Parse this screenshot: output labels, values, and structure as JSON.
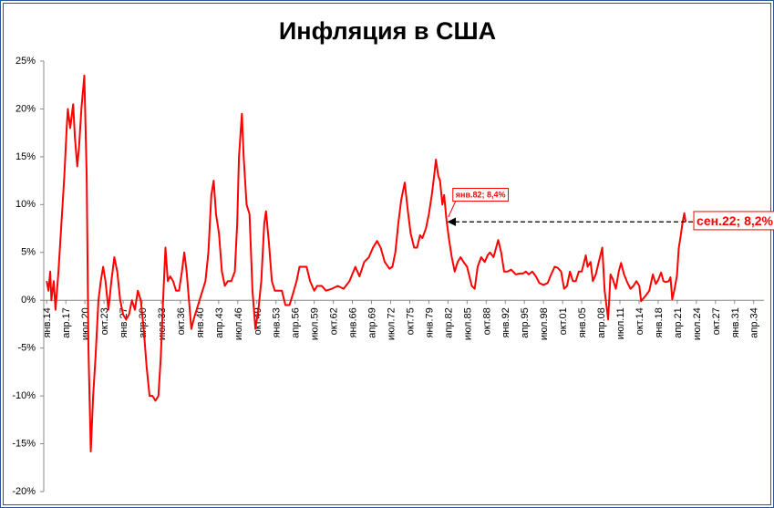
{
  "chart_data": {
    "type": "line",
    "title": "Инфляция в США",
    "xlim": [
      1913.5,
      2036
    ],
    "ylim": [
      -20,
      25
    ],
    "yticks": [
      {
        "value": 25,
        "label": "25%"
      },
      {
        "value": 20,
        "label": "20%"
      },
      {
        "value": 15,
        "label": "15%"
      },
      {
        "value": 10,
        "label": "10%"
      },
      {
        "value": 5,
        "label": "5%"
      },
      {
        "value": 0,
        "label": "0%"
      },
      {
        "value": -5,
        "label": "-5%"
      },
      {
        "value": -10,
        "label": "-10%"
      },
      {
        "value": -15,
        "label": "-15%"
      },
      {
        "value": -20,
        "label": "-20%"
      }
    ],
    "xticks": [
      {
        "value": 1914,
        "label": "янв.14"
      },
      {
        "value": 1917.25,
        "label": "апр.17"
      },
      {
        "value": 1920.5,
        "label": "июл.20"
      },
      {
        "value": 1923.75,
        "label": "окт.23"
      },
      {
        "value": 1927,
        "label": "янв.27"
      },
      {
        "value": 1930.25,
        "label": "апр.30"
      },
      {
        "value": 1933.5,
        "label": "июл.33"
      },
      {
        "value": 1936.75,
        "label": "окт.36"
      },
      {
        "value": 1940,
        "label": "янв.40"
      },
      {
        "value": 1943.25,
        "label": "апр.43"
      },
      {
        "value": 1946.5,
        "label": "июл.46"
      },
      {
        "value": 1949.75,
        "label": "окт.49"
      },
      {
        "value": 1953,
        "label": "янв.53"
      },
      {
        "value": 1956.25,
        "label": "апр.56"
      },
      {
        "value": 1959.5,
        "label": "июл.59"
      },
      {
        "value": 1962.75,
        "label": "окт.62"
      },
      {
        "value": 1966,
        "label": "янв.66"
      },
      {
        "value": 1969.25,
        "label": "апр.69"
      },
      {
        "value": 1972.5,
        "label": "июл.72"
      },
      {
        "value": 1975.75,
        "label": "окт.75"
      },
      {
        "value": 1979,
        "label": "янв.79"
      },
      {
        "value": 1982.25,
        "label": "апр.82"
      },
      {
        "value": 1985.5,
        "label": "июл.85"
      },
      {
        "value": 1988.75,
        "label": "окт.88"
      },
      {
        "value": 1992,
        "label": "янв.92"
      },
      {
        "value": 1995.25,
        "label": "апр.95"
      },
      {
        "value": 1998.5,
        "label": "июл.98"
      },
      {
        "value": 2001.75,
        "label": "окт.01"
      },
      {
        "value": 2005,
        "label": "янв.05"
      },
      {
        "value": 2008.25,
        "label": "апр.08"
      },
      {
        "value": 2011.5,
        "label": "июл.11"
      },
      {
        "value": 2014.75,
        "label": "окт.14"
      },
      {
        "value": 2018,
        "label": "янв.18"
      },
      {
        "value": 2021.25,
        "label": "апр.21"
      },
      {
        "value": 2024.5,
        "label": "июл.24"
      },
      {
        "value": 2027.75,
        "label": "окт.27"
      },
      {
        "value": 2031,
        "label": "янв.31"
      },
      {
        "value": 2034.25,
        "label": "апр.34"
      }
    ],
    "series": [
      {
        "color": "#ff0000",
        "x": [
          1914.0,
          1914.3,
          1914.6,
          1914.8,
          1915.2,
          1915.5,
          1916.0,
          1916.5,
          1917.0,
          1917.4,
          1917.6,
          1918.0,
          1918.5,
          1918.8,
          1919.2,
          1919.5,
          1919.9,
          1920.4,
          1920.8,
          1921.1,
          1921.5,
          1921.9,
          1922.3,
          1922.8,
          1923.2,
          1923.6,
          1924.0,
          1924.5,
          1925.0,
          1925.5,
          1926.0,
          1926.5,
          1927.0,
          1927.5,
          1928.0,
          1928.5,
          1929.0,
          1929.5,
          1930.0,
          1930.5,
          1931.0,
          1931.5,
          1932.0,
          1932.5,
          1933.0,
          1933.4,
          1933.8,
          1934.2,
          1934.6,
          1935.0,
          1935.5,
          1936.0,
          1936.5,
          1937.0,
          1937.4,
          1937.8,
          1938.2,
          1938.6,
          1939.0,
          1939.5,
          1940.0,
          1940.5,
          1941.0,
          1941.5,
          1942.0,
          1942.4,
          1942.8,
          1943.3,
          1943.8,
          1944.3,
          1944.8,
          1945.4,
          1946.0,
          1946.4,
          1946.7,
          1947.2,
          1947.5,
          1948.0,
          1948.5,
          1949.0,
          1949.5,
          1950.0,
          1950.5,
          1951.0,
          1951.3,
          1951.8,
          1952.3,
          1952.8,
          1953.5,
          1954.0,
          1954.6,
          1955.3,
          1955.8,
          1956.5,
          1957.0,
          1957.5,
          1958.2,
          1958.8,
          1959.5,
          1960.0,
          1960.8,
          1961.5,
          1962.5,
          1963.5,
          1964.5,
          1965.5,
          1966.5,
          1967.2,
          1968.0,
          1968.8,
          1969.5,
          1970.2,
          1970.8,
          1971.5,
          1972.3,
          1972.8,
          1973.3,
          1973.8,
          1974.3,
          1974.9,
          1975.4,
          1975.9,
          1976.5,
          1977.0,
          1977.5,
          1977.9,
          1978.5,
          1979.0,
          1979.5,
          1979.9,
          1980.2,
          1980.6,
          1980.9,
          1981.3,
          1981.6,
          1982.0,
          1982.4,
          1982.9,
          1983.4,
          1983.9,
          1984.4,
          1984.9,
          1985.5,
          1986.3,
          1986.8,
          1987.3,
          1987.9,
          1988.5,
          1989.0,
          1989.4,
          1990.0,
          1990.8,
          1991.3,
          1991.8,
          1992.4,
          1993.0,
          1993.8,
          1994.5,
          1995.0,
          1995.5,
          1996.0,
          1996.6,
          1997.2,
          1997.8,
          1998.5,
          1999.2,
          1999.8,
          2000.4,
          2000.9,
          2001.5,
          2002.0,
          2002.5,
          2003.0,
          2003.5,
          2004.0,
          2004.5,
          2005.0,
          2005.7,
          2006.0,
          2006.5,
          2006.9,
          2007.4,
          2007.9,
          2008.5,
          2008.9,
          2009.5,
          2009.9,
          2010.3,
          2010.8,
          2011.3,
          2011.7,
          2012.2,
          2012.8,
          2013.3,
          2013.8,
          2014.3,
          2014.8,
          2015.1,
          2015.5,
          2015.9,
          2016.5,
          2017.1,
          2017.6,
          2018.0,
          2018.5,
          2018.9,
          2019.3,
          2019.8,
          2020.1,
          2020.4,
          2020.8,
          2021.2,
          2021.5,
          2021.9,
          2022.1,
          2022.45,
          2022.67
        ],
        "values": [
          2,
          1,
          3,
          0,
          2,
          -1,
          3,
          8,
          13,
          18,
          20,
          18,
          20.5,
          17,
          14,
          16,
          20,
          23.5,
          13,
          -5,
          -15.8,
          -10,
          -6,
          0,
          2,
          3.5,
          2,
          -1,
          2,
          4.5,
          3,
          0,
          -1.5,
          -2,
          -1.5,
          0,
          -1,
          1,
          0,
          -3,
          -7,
          -10,
          -10,
          -10.5,
          -10,
          -6,
          0,
          5.5,
          2,
          2.5,
          2,
          1,
          1,
          3,
          5,
          3,
          0,
          -3,
          -2,
          -1,
          0,
          1,
          2,
          5,
          11,
          12.5,
          9,
          7,
          3,
          1.5,
          2,
          2,
          3,
          8,
          15,
          19.5,
          15,
          10,
          9,
          1,
          -3,
          -1,
          2,
          8,
          9.3,
          6,
          2,
          1,
          1,
          1,
          -0.5,
          -0.5,
          0.5,
          2,
          3.5,
          3.5,
          3.5,
          2,
          1,
          1.5,
          1.5,
          1,
          1.2,
          1.5,
          1.2,
          2,
          3.5,
          2.5,
          4,
          4.5,
          5.5,
          6.2,
          5.5,
          4,
          3.3,
          3.5,
          5,
          8,
          10.5,
          12.3,
          9.5,
          7,
          5.5,
          5.5,
          6.8,
          6.5,
          7.5,
          9,
          11,
          13,
          14.7,
          13,
          12.5,
          10,
          11,
          8.4,
          6.5,
          4.5,
          3,
          4,
          4.5,
          4,
          3.5,
          1.5,
          1.2,
          3.5,
          4.5,
          4,
          4.7,
          5,
          4.5,
          6.3,
          5,
          3,
          3,
          3.2,
          2.7,
          2.8,
          2.8,
          3,
          2.7,
          3,
          2.5,
          1.8,
          1.6,
          1.8,
          2.7,
          3.5,
          3.4,
          3,
          1.2,
          1.5,
          3,
          2,
          2,
          3,
          3,
          4.7,
          3.5,
          4,
          2,
          2.7,
          4,
          5.5,
          1,
          -2,
          2.7,
          2.2,
          1.2,
          3,
          3.9,
          2.7,
          1.8,
          1.2,
          1.5,
          2,
          1.5,
          -0.1,
          0.2,
          0.5,
          1,
          2.7,
          1.7,
          2.1,
          2.9,
          2,
          1.9,
          2,
          2.4,
          0.1,
          1.2,
          2.6,
          5.4,
          7,
          7.9,
          9.1,
          8.2
        ]
      }
    ],
    "annotations": [
      {
        "x": 1982,
        "y": 8.4,
        "text": "янв.82; 8,4%"
      },
      {
        "x": 2022.67,
        "y": 8.2,
        "text": "сен.22; 8,2%"
      }
    ]
  }
}
